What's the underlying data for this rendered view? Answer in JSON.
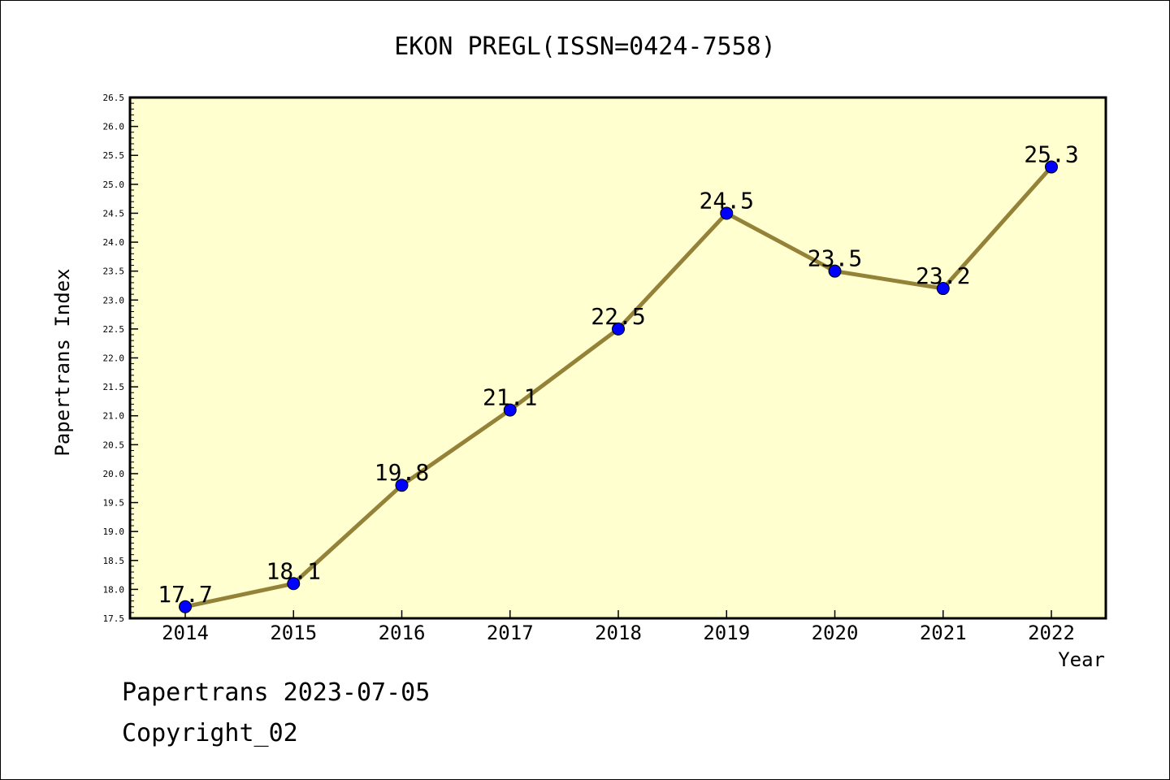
{
  "chart_data": {
    "type": "line",
    "title": "EKON PREGL(ISSN=0424-7558)",
    "xlabel": "Year",
    "ylabel": "Papertrans Index",
    "categories": [
      "2014",
      "2015",
      "2016",
      "2017",
      "2018",
      "2019",
      "2020",
      "2021",
      "2022"
    ],
    "values": [
      17.7,
      18.1,
      19.8,
      21.1,
      22.5,
      24.5,
      23.5,
      23.2,
      25.3
    ],
    "value_labels": [
      "17.7",
      "18.1",
      "19.8",
      "21.1",
      "22.5",
      "24.5",
      "23.5",
      "23.2",
      "25.3"
    ],
    "ylim": [
      17.5,
      26.5
    ],
    "y_ticks": [
      "17.5",
      "18.0",
      "18.5",
      "19.0",
      "19.5",
      "20.0",
      "20.5",
      "21.0",
      "21.5",
      "22.0",
      "22.5",
      "23.0",
      "23.5",
      "24.0",
      "24.5",
      "25.0",
      "25.5",
      "26.0",
      "26.5"
    ],
    "grid": false,
    "colors": {
      "plot_background": "#ffffd0",
      "line": "#948239",
      "marker": "#0000ff"
    }
  },
  "footer": {
    "line1": "Papertrans 2023-07-05",
    "line2": "Copyright_02"
  }
}
